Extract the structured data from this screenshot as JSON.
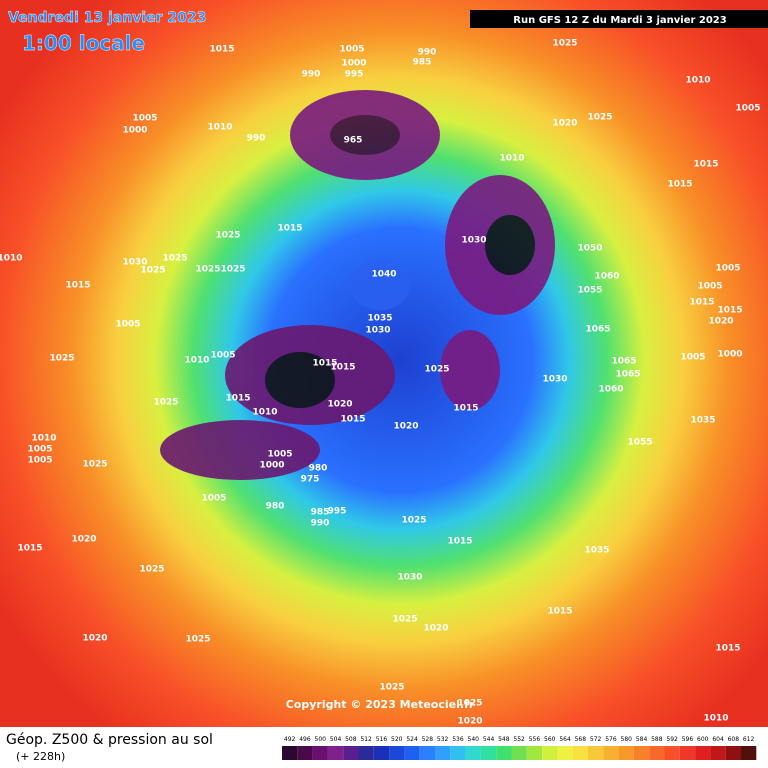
{
  "header": {
    "date": "Vendredi 13 janvier 2023",
    "time": "1:00 locale",
    "run": "Run GFS 12 Z du Mardi 3 janvier 2023"
  },
  "copyright": "Copyright © 2023 Meteociel.fr",
  "footer": {
    "title": "Géop. Z500 & pression au sol",
    "step": "(+ 228h)"
  },
  "colorbar": {
    "ticks": [
      492,
      496,
      500,
      504,
      508,
      512,
      516,
      520,
      524,
      528,
      532,
      536,
      540,
      544,
      548,
      552,
      556,
      560,
      564,
      568,
      572,
      576,
      580,
      584,
      588,
      592,
      596,
      600,
      604,
      608,
      612
    ],
    "colors": [
      "#2a0830",
      "#4a0a4a",
      "#6a1070",
      "#80208a",
      "#5a1e8e",
      "#2c2a9a",
      "#1a30b8",
      "#1a48d8",
      "#1e60f0",
      "#2a80ff",
      "#30a0ff",
      "#30c0f0",
      "#30d8d0",
      "#30e0a0",
      "#40e070",
      "#70e050",
      "#a0e840",
      "#d0f040",
      "#f0f040",
      "#f8e040",
      "#f8c838",
      "#f8b030",
      "#f89828",
      "#f88028",
      "#f86828",
      "#f85028",
      "#f03828",
      "#e02020",
      "#c01818",
      "#901010",
      "#501010"
    ]
  },
  "isobar_labels": [
    1015,
    1005,
    990,
    985,
    1025,
    1000,
    995,
    990,
    1010,
    1005,
    1000,
    1010,
    990,
    965,
    1020,
    1025,
    1005,
    1010,
    1015,
    1015,
    1025,
    1015,
    1030,
    1050,
    1060,
    1055,
    1010,
    1030,
    1025,
    1025,
    1025,
    1025,
    1040,
    1015,
    1005,
    1005,
    1015,
    1015,
    1020,
    1005,
    1035,
    1030,
    1065,
    1025,
    1010,
    1005,
    1015,
    1015,
    1025,
    1065,
    1065,
    1000,
    1005,
    1030,
    1060,
    1025,
    1015,
    1020,
    1010,
    1015,
    1020,
    1015,
    1035,
    1055,
    1010,
    1005,
    1005,
    1025,
    1005,
    1000,
    980,
    975,
    1005,
    985,
    995,
    990,
    980,
    1025,
    1015,
    1020,
    1015,
    1035,
    1025,
    1030,
    1015,
    1025,
    1020,
    1020,
    1025,
    1015,
    1025,
    1025,
    1020,
    1010
  ]
}
